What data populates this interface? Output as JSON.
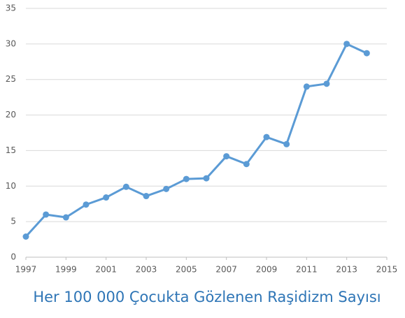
{
  "chart_data": {
    "type": "line",
    "title": "Her 100 000 Çocukta Gözlenen Raşidizm Sayısı",
    "x": [
      1997,
      1998,
      1999,
      2000,
      2001,
      2002,
      2003,
      2004,
      2005,
      2006,
      2007,
      2008,
      2009,
      2010,
      2011,
      2012,
      2013,
      2014
    ],
    "series": [
      {
        "color": "#5b9bd5",
        "values": [
          2.9,
          6.0,
          5.6,
          7.4,
          8.4,
          9.9,
          8.6,
          9.6,
          11.0,
          11.1,
          14.2,
          13.1,
          16.9,
          15.9,
          24.0,
          24.4,
          30.0,
          28.7
        ]
      }
    ],
    "xlim": [
      1997,
      2015
    ],
    "xticks": [
      1997,
      1999,
      2001,
      2003,
      2005,
      2007,
      2009,
      2011,
      2013,
      2015
    ],
    "ylim": [
      0,
      35
    ],
    "yticks": [
      0,
      5,
      10,
      15,
      20,
      25,
      30,
      35
    ],
    "grid": true
  }
}
